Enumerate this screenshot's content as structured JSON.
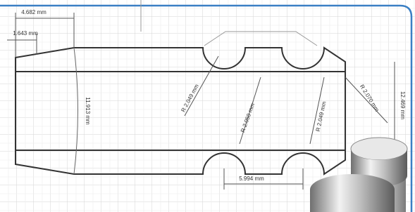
{
  "dimensions": {
    "top_length": "4.682 mm",
    "taper_length": "1.643 mm",
    "left_height": "11.913 mm",
    "radius_1": "R 2.049 mm",
    "radius_2": "R 2.050 mm",
    "radius_3": "R 2.049 mm",
    "radius_4": "R 2.070 mm",
    "right_height": "12.469 mm",
    "notch_spacing": "5.994 mm"
  }
}
